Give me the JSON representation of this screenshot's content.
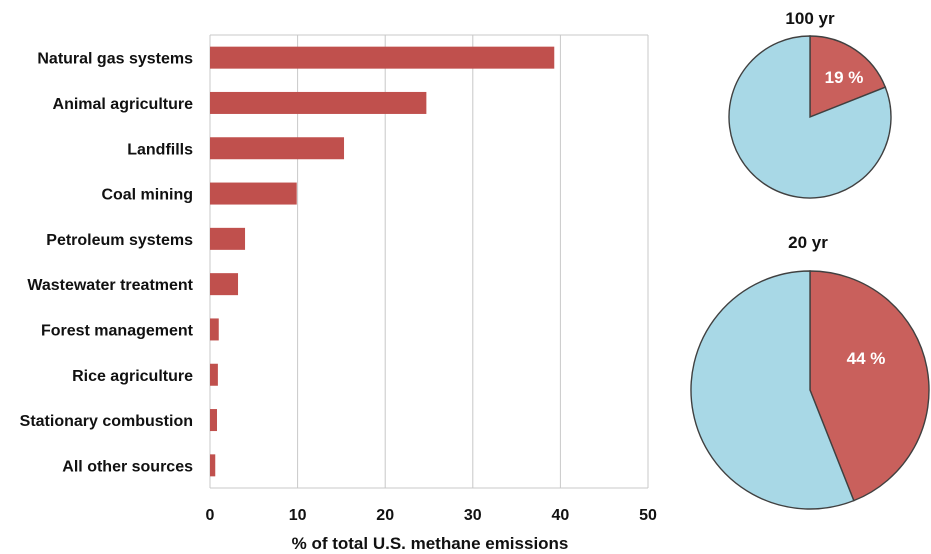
{
  "colors": {
    "bar_fill": "#c0504d",
    "pie_slice": "#c9605c",
    "pie_other": "#a8d8e6",
    "grid": "#c8c8c8",
    "outline": "#404040"
  },
  "chart_data": [
    {
      "type": "bar",
      "orientation": "horizontal",
      "categories": [
        "Natural gas systems",
        "Animal agriculture",
        "Landfills",
        "Coal mining",
        "Petroleum systems",
        "Wastewater treatment",
        "Forest management",
        "Rice agriculture",
        "Stationary combustion",
        "All other sources"
      ],
      "values": [
        39.3,
        24.7,
        15.3,
        9.9,
        4.0,
        3.2,
        1.0,
        0.9,
        0.8,
        0.6
      ],
      "xlabel": "% of total U.S. methane emissions",
      "xlim": [
        0,
        50
      ],
      "xticks": [
        0,
        10,
        20,
        30,
        40,
        50
      ],
      "grid": "vertical"
    },
    {
      "type": "pie",
      "title": "100 yr",
      "slices": [
        {
          "label": "19 %",
          "value": 19
        },
        {
          "label": "",
          "value": 81
        }
      ]
    },
    {
      "type": "pie",
      "title": "20 yr",
      "slices": [
        {
          "label": "44 %",
          "value": 44
        },
        {
          "label": "",
          "value": 56
        }
      ]
    }
  ]
}
